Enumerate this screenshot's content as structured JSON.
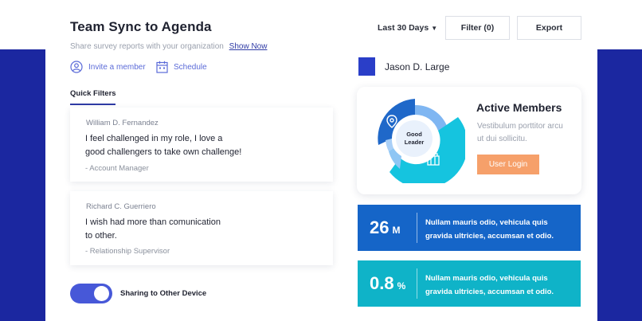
{
  "header": {
    "title": "Team Sync to Agenda",
    "subtitle": "Share survey reports with your organization",
    "subtitle_link": "Show Now",
    "period": "Last 30 Days",
    "filter_label": "Filter (0)",
    "export_label": "Export"
  },
  "actions": {
    "invite": "Invite a member",
    "schedule": "Schedule"
  },
  "quick_filters": {
    "label": "Quick Filters",
    "cards": [
      {
        "name": "William D. Fernandez",
        "quote_line1": "I feel challenged in my role, I love a",
        "quote_line2": "good challengers to take own challenge!",
        "role": "- Account Manager"
      },
      {
        "name": "Richard C. Guerriero",
        "quote_line1": "I wish had more than comunication",
        "quote_line2": "to other.",
        "role": "- Relationship  Supervisor"
      }
    ]
  },
  "sharing": {
    "label": "Sharing to Other Device",
    "enabled": true
  },
  "user": {
    "name": "Jason D. Large"
  },
  "members": {
    "title": "Active Members",
    "description": "Vestibulum porttitor arcu ut dui sollicitu.",
    "center_line1": "Good",
    "center_line2": "Leader",
    "login_label": "User Login"
  },
  "stats": [
    {
      "value": "26",
      "unit": "M",
      "text": "Nullam mauris odio, vehicula quis gravida ultricies, accumsan et odio."
    },
    {
      "value": "0.8",
      "unit": "%",
      "text": "Nullam mauris odio, vehicula quis gravida ultricies, accumsan et odio."
    }
  ],
  "colors": {
    "brand_blue": "#1b27a0",
    "accent": "#4758d8",
    "orange": "#f6a06a",
    "stat_blue": "#1565c8",
    "stat_cyan": "#0fb3c8"
  }
}
